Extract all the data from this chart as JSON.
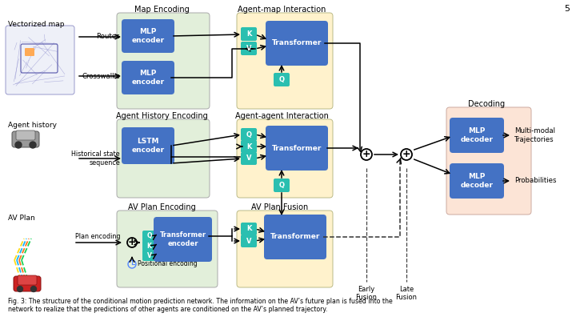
{
  "bg_color": "#ffffff",
  "page_number": "5",
  "title_line1": "Fig. 3: The structure of the conditional motion prediction network. The information on the AV’s future plan is fused into the",
  "title_line2": "network to realize that the predictions of other agents are conditioned on the AV’s planned trajectory.",
  "colors": {
    "blue_box": "#4472C4",
    "teal_box": "#2ABFB0",
    "green_bg": "#E2EFDA",
    "yellow_bg": "#FFF2CC",
    "peach_bg": "#FCE4D6",
    "green_bg_ec": "#AAAAAA",
    "yellow_bg_ec": "#CCCCAA",
    "peach_bg_ec": "#CCAAA0"
  },
  "labels": {
    "vectorized_map": "Vectorized map",
    "agent_history": "Agent history",
    "av_plan": "AV Plan",
    "map_encoding": "Map Encoding",
    "agent_history_encoding": "Agent History Encoding",
    "av_plan_encoding": "AV Plan Encoding",
    "agent_map_interaction": "Agent-map Interaction",
    "agent_agent_interaction": "Agent-agent Interaction",
    "av_plan_fusion": "AV Plan Fusion",
    "decoding": "Decoding",
    "routes": "Routes",
    "crosswalks": "Crosswalks",
    "historical_state": "Historical state\nsequence",
    "plan_encoding": "Plan encoding",
    "positional_encoding": "Positional encoding",
    "early_fusion": "Early\nFusion",
    "late_fusion": "Late\nFusion",
    "multi_modal": "Multi-modal\nTrajectories",
    "probabilities": "Probabilities",
    "mlp_encoder": "MLP\nencoder",
    "lstm_encoder": "LSTM\nencoder",
    "transformer": "Transformer",
    "transformer_encoder": "Transformer\nencoder",
    "mlp_decoder": "MLP\ndecoder"
  }
}
